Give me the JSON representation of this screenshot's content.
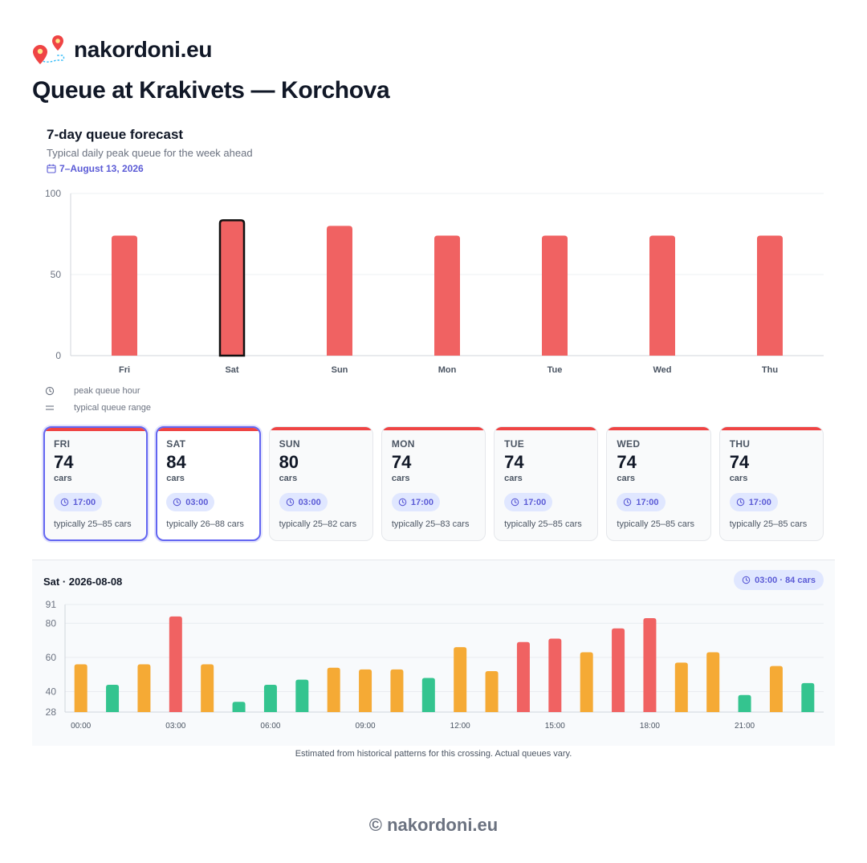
{
  "site": {
    "name": "nakordoni.eu",
    "logo_icon": "map-pins-route-icon"
  },
  "page_title": "Queue at Krakivets — Korchova",
  "forecast": {
    "title": "7-day queue forecast",
    "subtitle": "Typical daily peak queue for the week ahead",
    "date_range": "7–August 13, 2026",
    "date_icon": "calendar-icon",
    "selected_index": 1
  },
  "legend": [
    {
      "icon": "clock-icon",
      "label": "peak queue hour"
    },
    {
      "icon": "range-lines-icon",
      "label": "typical queue range"
    }
  ],
  "days": [
    {
      "short": "Fri",
      "label": "FRI",
      "value": "74",
      "unit": "cars",
      "peak": "17:00",
      "range": "typically 25–85 cars"
    },
    {
      "short": "Sat",
      "label": "SAT",
      "value": "84",
      "unit": "cars",
      "peak": "03:00",
      "range": "typically 26–88 cars"
    },
    {
      "short": "Sun",
      "label": "SUN",
      "value": "80",
      "unit": "cars",
      "peak": "03:00",
      "range": "typically 25–82 cars"
    },
    {
      "short": "Mon",
      "label": "MON",
      "value": "74",
      "unit": "cars",
      "peak": "17:00",
      "range": "typically 25–83 cars"
    },
    {
      "short": "Tue",
      "label": "TUE",
      "value": "74",
      "unit": "cars",
      "peak": "17:00",
      "range": "typically 25–85 cars"
    },
    {
      "short": "Wed",
      "label": "WED",
      "value": "74",
      "unit": "cars",
      "peak": "17:00",
      "range": "typically 25–85 cars"
    },
    {
      "short": "Thu",
      "label": "THU",
      "value": "74",
      "unit": "cars",
      "peak": "17:00",
      "range": "typically 25–85 cars"
    }
  ],
  "detail": {
    "title": "Sat · 2026-08-08",
    "badge": "03:00 · 84 cars"
  },
  "chart_data": [
    {
      "type": "bar",
      "title": "",
      "xlabel": "",
      "ylabel": "",
      "categories": [
        "Fri",
        "Sat",
        "Sun",
        "Mon",
        "Tue",
        "Wed",
        "Thu"
      ],
      "values": [
        74,
        84,
        80,
        74,
        74,
        74,
        74
      ],
      "ylim": [
        0,
        100
      ],
      "yticks": [
        0,
        50,
        100
      ],
      "highlight": "Sat",
      "grid": true,
      "colors": {
        "bar": "#f06262",
        "highlight_stroke": "#111111"
      }
    },
    {
      "type": "bar",
      "title": "",
      "xlabel": "",
      "ylabel": "",
      "x": [
        "00:00",
        "01:00",
        "02:00",
        "03:00",
        "04:00",
        "05:00",
        "06:00",
        "07:00",
        "08:00",
        "09:00",
        "10:00",
        "11:00",
        "12:00",
        "13:00",
        "14:00",
        "15:00",
        "16:00",
        "17:00",
        "18:00",
        "19:00",
        "20:00",
        "21:00",
        "22:00",
        "23:00"
      ],
      "xtick_labels": [
        "00:00",
        "03:00",
        "06:00",
        "09:00",
        "12:00",
        "15:00",
        "18:00",
        "21:00"
      ],
      "values": [
        56,
        44,
        56,
        84,
        56,
        34,
        44,
        47,
        54,
        53,
        53,
        48,
        66,
        52,
        69,
        71,
        63,
        77,
        83,
        57,
        63,
        38,
        55,
        45
      ],
      "levels": [
        "medium",
        "low",
        "medium",
        "high",
        "medium",
        "low",
        "low",
        "low",
        "medium",
        "medium",
        "medium",
        "low",
        "medium",
        "medium",
        "high",
        "high",
        "medium",
        "high",
        "high",
        "medium",
        "medium",
        "low",
        "medium",
        "low"
      ],
      "ylim": [
        28,
        91
      ],
      "yticks": [
        28,
        40,
        60,
        80,
        91
      ],
      "grid": true,
      "colors": {
        "low": "#34c48f",
        "medium": "#f5aa35",
        "high": "#f06262"
      }
    }
  ],
  "footnote": "Estimated from historical patterns for this crossing. Actual queues vary.",
  "footer": "© nakordoni.eu"
}
